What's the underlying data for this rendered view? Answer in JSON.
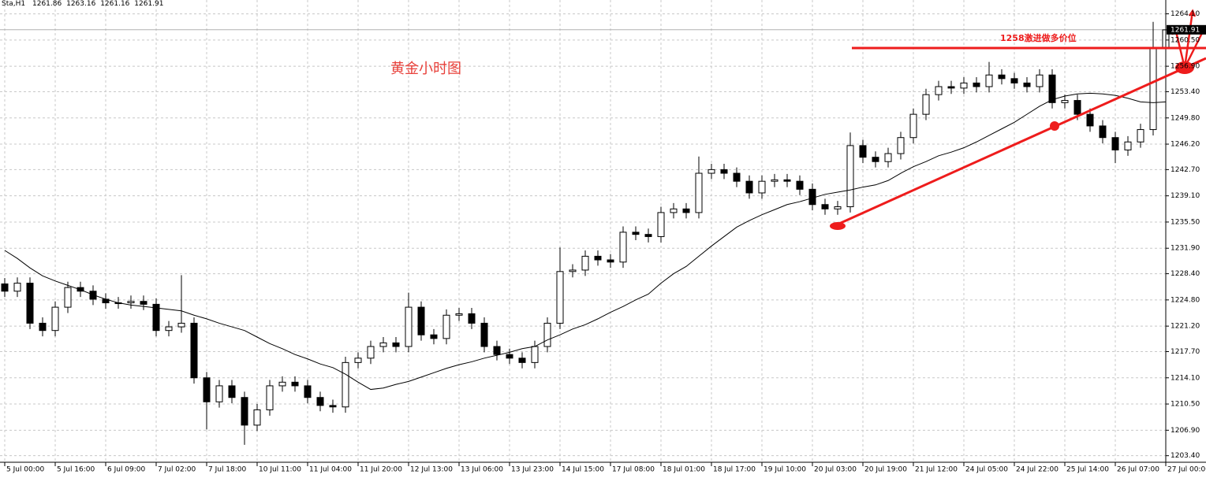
{
  "chart_data": {
    "type": "candlestick",
    "header": "Sta,H1",
    "header_values": [
      1261.86,
      1263.16,
      1261.16,
      1261.91
    ],
    "annotations": [
      "黄金小时图",
      "1258激进做多价位"
    ],
    "bull_color": "#ffffff",
    "bear_color": "#000000",
    "ma_color": "#000000",
    "ylim": [
      1202.5,
      1266.0
    ],
    "yticks": [
      {
        "value": 1264.1,
        "label": "1264.10"
      },
      {
        "value": 1260.5,
        "label": "1260.50"
      },
      {
        "value": 1256.9,
        "label": "1256.90"
      },
      {
        "value": 1253.4,
        "label": "1253.40"
      },
      {
        "value": 1249.8,
        "label": "1249.80"
      },
      {
        "value": 1246.2,
        "label": "1246.20"
      },
      {
        "value": 1242.7,
        "label": "1242.70"
      },
      {
        "value": 1239.1,
        "label": "1239.10"
      },
      {
        "value": 1235.5,
        "label": "1235.50"
      },
      {
        "value": 1231.9,
        "label": "1231.90"
      },
      {
        "value": 1228.4,
        "label": "1228.40"
      },
      {
        "value": 1224.8,
        "label": "1224.80"
      },
      {
        "value": 1221.2,
        "label": "1221.20"
      },
      {
        "value": 1217.7,
        "label": "1217.70"
      },
      {
        "value": 1214.1,
        "label": "1214.10"
      },
      {
        "value": 1210.5,
        "label": "1210.50"
      },
      {
        "value": 1206.9,
        "label": "1206.90"
      },
      {
        "value": 1203.4,
        "label": "1203.40"
      }
    ],
    "grid": true,
    "categories": [
      "5 Jul 00:00",
      null,
      null,
      null,
      "5 Jul 16:00",
      null,
      null,
      null,
      "6 Jul 09:00",
      null,
      null,
      null,
      "7 Jul 02:00",
      null,
      null,
      null,
      "7 Jul 18:00",
      null,
      null,
      null,
      "10 Jul 11:00",
      null,
      null,
      null,
      "11 Jul 04:00",
      null,
      null,
      null,
      "11 Jul 20:00",
      null,
      null,
      null,
      "12 Jul 13:00",
      null,
      null,
      null,
      "13 Jul 06:00",
      null,
      null,
      null,
      "13 Jul 23:00",
      null,
      null,
      null,
      "14 Jul 15:00",
      null,
      null,
      null,
      "17 Jul 08:00",
      null,
      null,
      null,
      "18 Jul 01:00",
      null,
      null,
      null,
      "18 Jul 17:00",
      null,
      null,
      null,
      "19 Jul 10:00",
      null,
      null,
      null,
      "20 Jul 03:00",
      null,
      null,
      null,
      "20 Jul 19:00",
      null,
      null,
      null,
      "21 Jul 12:00",
      null,
      null,
      null,
      "24 Jul 05:00",
      null,
      null,
      null,
      "24 Jul 22:00",
      null,
      null,
      null,
      "25 Jul 14:00",
      null,
      null,
      null,
      "26 Jul 07:00",
      null,
      null,
      null,
      "27 Jul 00:00"
    ],
    "open": [
      1227.0,
      1226.0,
      1227.1,
      1221.6,
      1220.6,
      1223.8,
      1226.5,
      1226.0,
      1224.9,
      1224.4,
      1224.4,
      1224.6,
      1224.2,
      1220.6,
      1221.1,
      1221.6,
      1214.1,
      1210.8,
      1213.0,
      1211.4,
      1207.6,
      1209.7,
      1213.0,
      1213.5,
      1213.0,
      1211.4,
      1210.3,
      1210.1,
      1216.2,
      1216.8,
      1218.4,
      1218.9,
      1218.4,
      1223.8,
      1220.0,
      1219.5,
      1222.7,
      1222.9,
      1221.6,
      1218.4,
      1217.3,
      1216.8,
      1216.2,
      1218.4,
      1221.6,
      1228.7,
      1228.9,
      1230.8,
      1230.3,
      1230.0,
      1234.1,
      1233.8,
      1233.5,
      1236.8,
      1237.3,
      1236.8,
      1242.2,
      1242.7,
      1242.2,
      1241.1,
      1239.5,
      1241.1,
      1241.3,
      1241.1,
      1240.0,
      1237.9,
      1237.3,
      1237.6,
      1246.0,
      1244.4,
      1243.8,
      1244.9,
      1247.1,
      1250.3,
      1253.0,
      1254.1,
      1253.9,
      1254.6,
      1254.1,
      1255.7,
      1255.2,
      1254.6,
      1254.1,
      1255.7,
      1251.9,
      1252.2,
      1250.3,
      1248.7,
      1247.1,
      1245.4,
      1246.5,
      1248.2,
      1259.5
    ],
    "high": [
      1227.8,
      1227.9,
      1227.9,
      1222.4,
      1224.6,
      1227.3,
      1227.3,
      1226.8,
      1225.7,
      1225.2,
      1225.4,
      1225.4,
      1225.0,
      1221.9,
      1228.2,
      1222.4,
      1214.9,
      1213.8,
      1213.8,
      1212.2,
      1210.5,
      1213.8,
      1214.3,
      1214.3,
      1213.8,
      1212.2,
      1211.1,
      1217.0,
      1217.6,
      1219.2,
      1219.7,
      1219.7,
      1225.8,
      1224.6,
      1220.8,
      1223.5,
      1223.7,
      1223.7,
      1222.4,
      1219.2,
      1218.1,
      1217.6,
      1219.2,
      1222.4,
      1232.0,
      1229.7,
      1231.6,
      1231.6,
      1231.1,
      1234.9,
      1234.9,
      1234.6,
      1237.6,
      1238.1,
      1238.1,
      1244.5,
      1243.5,
      1243.5,
      1243.0,
      1241.9,
      1241.9,
      1242.1,
      1242.1,
      1241.9,
      1240.8,
      1238.7,
      1238.4,
      1247.8,
      1246.8,
      1245.2,
      1245.7,
      1247.9,
      1251.1,
      1253.8,
      1254.9,
      1254.9,
      1255.4,
      1255.4,
      1257.5,
      1256.5,
      1256.0,
      1255.4,
      1256.5,
      1256.5,
      1253.0,
      1253.0,
      1251.1,
      1249.5,
      1247.9,
      1247.3,
      1249.0,
      1263.0,
      1264.6
    ],
    "low": [
      1225.2,
      1225.2,
      1220.8,
      1219.8,
      1219.8,
      1223.0,
      1225.2,
      1224.1,
      1223.6,
      1223.6,
      1223.6,
      1223.4,
      1219.8,
      1219.8,
      1220.3,
      1213.3,
      1207.0,
      1210.0,
      1210.6,
      1204.9,
      1206.8,
      1208.9,
      1212.2,
      1212.2,
      1210.6,
      1209.5,
      1209.3,
      1209.3,
      1215.4,
      1216.0,
      1217.6,
      1217.6,
      1217.6,
      1219.2,
      1218.7,
      1218.7,
      1221.9,
      1220.8,
      1217.6,
      1216.5,
      1216.0,
      1215.4,
      1215.4,
      1217.6,
      1220.8,
      1227.9,
      1228.1,
      1229.5,
      1229.2,
      1229.2,
      1233.0,
      1232.7,
      1232.7,
      1236.0,
      1236.0,
      1236.0,
      1241.4,
      1241.4,
      1240.3,
      1238.7,
      1238.7,
      1240.3,
      1240.3,
      1239.2,
      1237.1,
      1236.5,
      1236.5,
      1236.8,
      1243.6,
      1243.0,
      1243.0,
      1244.1,
      1246.3,
      1249.5,
      1252.2,
      1253.1,
      1253.1,
      1253.3,
      1253.3,
      1254.4,
      1253.8,
      1253.3,
      1253.3,
      1251.1,
      1251.1,
      1249.5,
      1247.9,
      1246.3,
      1243.6,
      1244.6,
      1245.7,
      1247.4,
      1258.7
    ],
    "close": [
      1226.0,
      1227.1,
      1221.6,
      1220.6,
      1223.8,
      1226.5,
      1226.0,
      1224.9,
      1224.4,
      1224.4,
      1224.6,
      1224.2,
      1220.6,
      1221.1,
      1221.6,
      1214.1,
      1210.8,
      1213.0,
      1211.4,
      1207.6,
      1209.7,
      1213.0,
      1213.5,
      1213.0,
      1211.4,
      1210.3,
      1210.1,
      1216.2,
      1216.8,
      1218.4,
      1218.9,
      1218.4,
      1223.8,
      1220.0,
      1219.5,
      1222.7,
      1222.9,
      1221.6,
      1218.4,
      1217.3,
      1216.8,
      1216.2,
      1218.4,
      1221.6,
      1228.7,
      1228.9,
      1230.8,
      1230.3,
      1230.0,
      1234.1,
      1233.8,
      1233.5,
      1236.8,
      1237.3,
      1236.8,
      1242.2,
      1242.7,
      1242.2,
      1241.1,
      1239.5,
      1241.1,
      1241.3,
      1241.1,
      1240.0,
      1237.9,
      1237.3,
      1237.6,
      1246.0,
      1244.4,
      1243.8,
      1244.9,
      1247.1,
      1250.3,
      1253.0,
      1254.1,
      1253.9,
      1254.6,
      1254.1,
      1255.7,
      1255.2,
      1254.6,
      1254.1,
      1255.7,
      1251.9,
      1252.2,
      1250.3,
      1248.7,
      1247.1,
      1245.4,
      1246.5,
      1248.2,
      1259.5,
      1261.9
    ],
    "ma": [
      1231.6,
      1230.5,
      1229.2,
      1228.1,
      1227.4,
      1226.8,
      1226.2,
      1225.5,
      1224.9,
      1224.4,
      1224.1,
      1223.9,
      1223.7,
      1223.5,
      1223.3,
      1222.7,
      1222.2,
      1221.6,
      1221.1,
      1220.6,
      1219.7,
      1218.8,
      1218.1,
      1217.3,
      1216.7,
      1216.0,
      1215.5,
      1214.6,
      1213.5,
      1212.5,
      1212.7,
      1213.2,
      1213.6,
      1214.2,
      1214.8,
      1215.4,
      1215.9,
      1216.3,
      1216.8,
      1217.2,
      1217.6,
      1218.1,
      1218.4,
      1219.3,
      1220.0,
      1220.8,
      1221.4,
      1222.2,
      1223.1,
      1223.9,
      1224.8,
      1225.6,
      1227.1,
      1228.4,
      1229.4,
      1230.8,
      1232.2,
      1233.5,
      1234.8,
      1235.7,
      1236.5,
      1237.2,
      1237.9,
      1238.3,
      1238.8,
      1239.3,
      1239.6,
      1239.9,
      1240.3,
      1240.6,
      1241.2,
      1242.2,
      1243.1,
      1243.8,
      1244.6,
      1245.1,
      1245.7,
      1246.5,
      1247.4,
      1248.3,
      1249.2,
      1250.3,
      1251.4,
      1252.3,
      1252.8,
      1253.1,
      1253.2,
      1253.1,
      1252.9,
      1252.5,
      1252.0,
      1251.9,
      1252.0
    ]
  }
}
